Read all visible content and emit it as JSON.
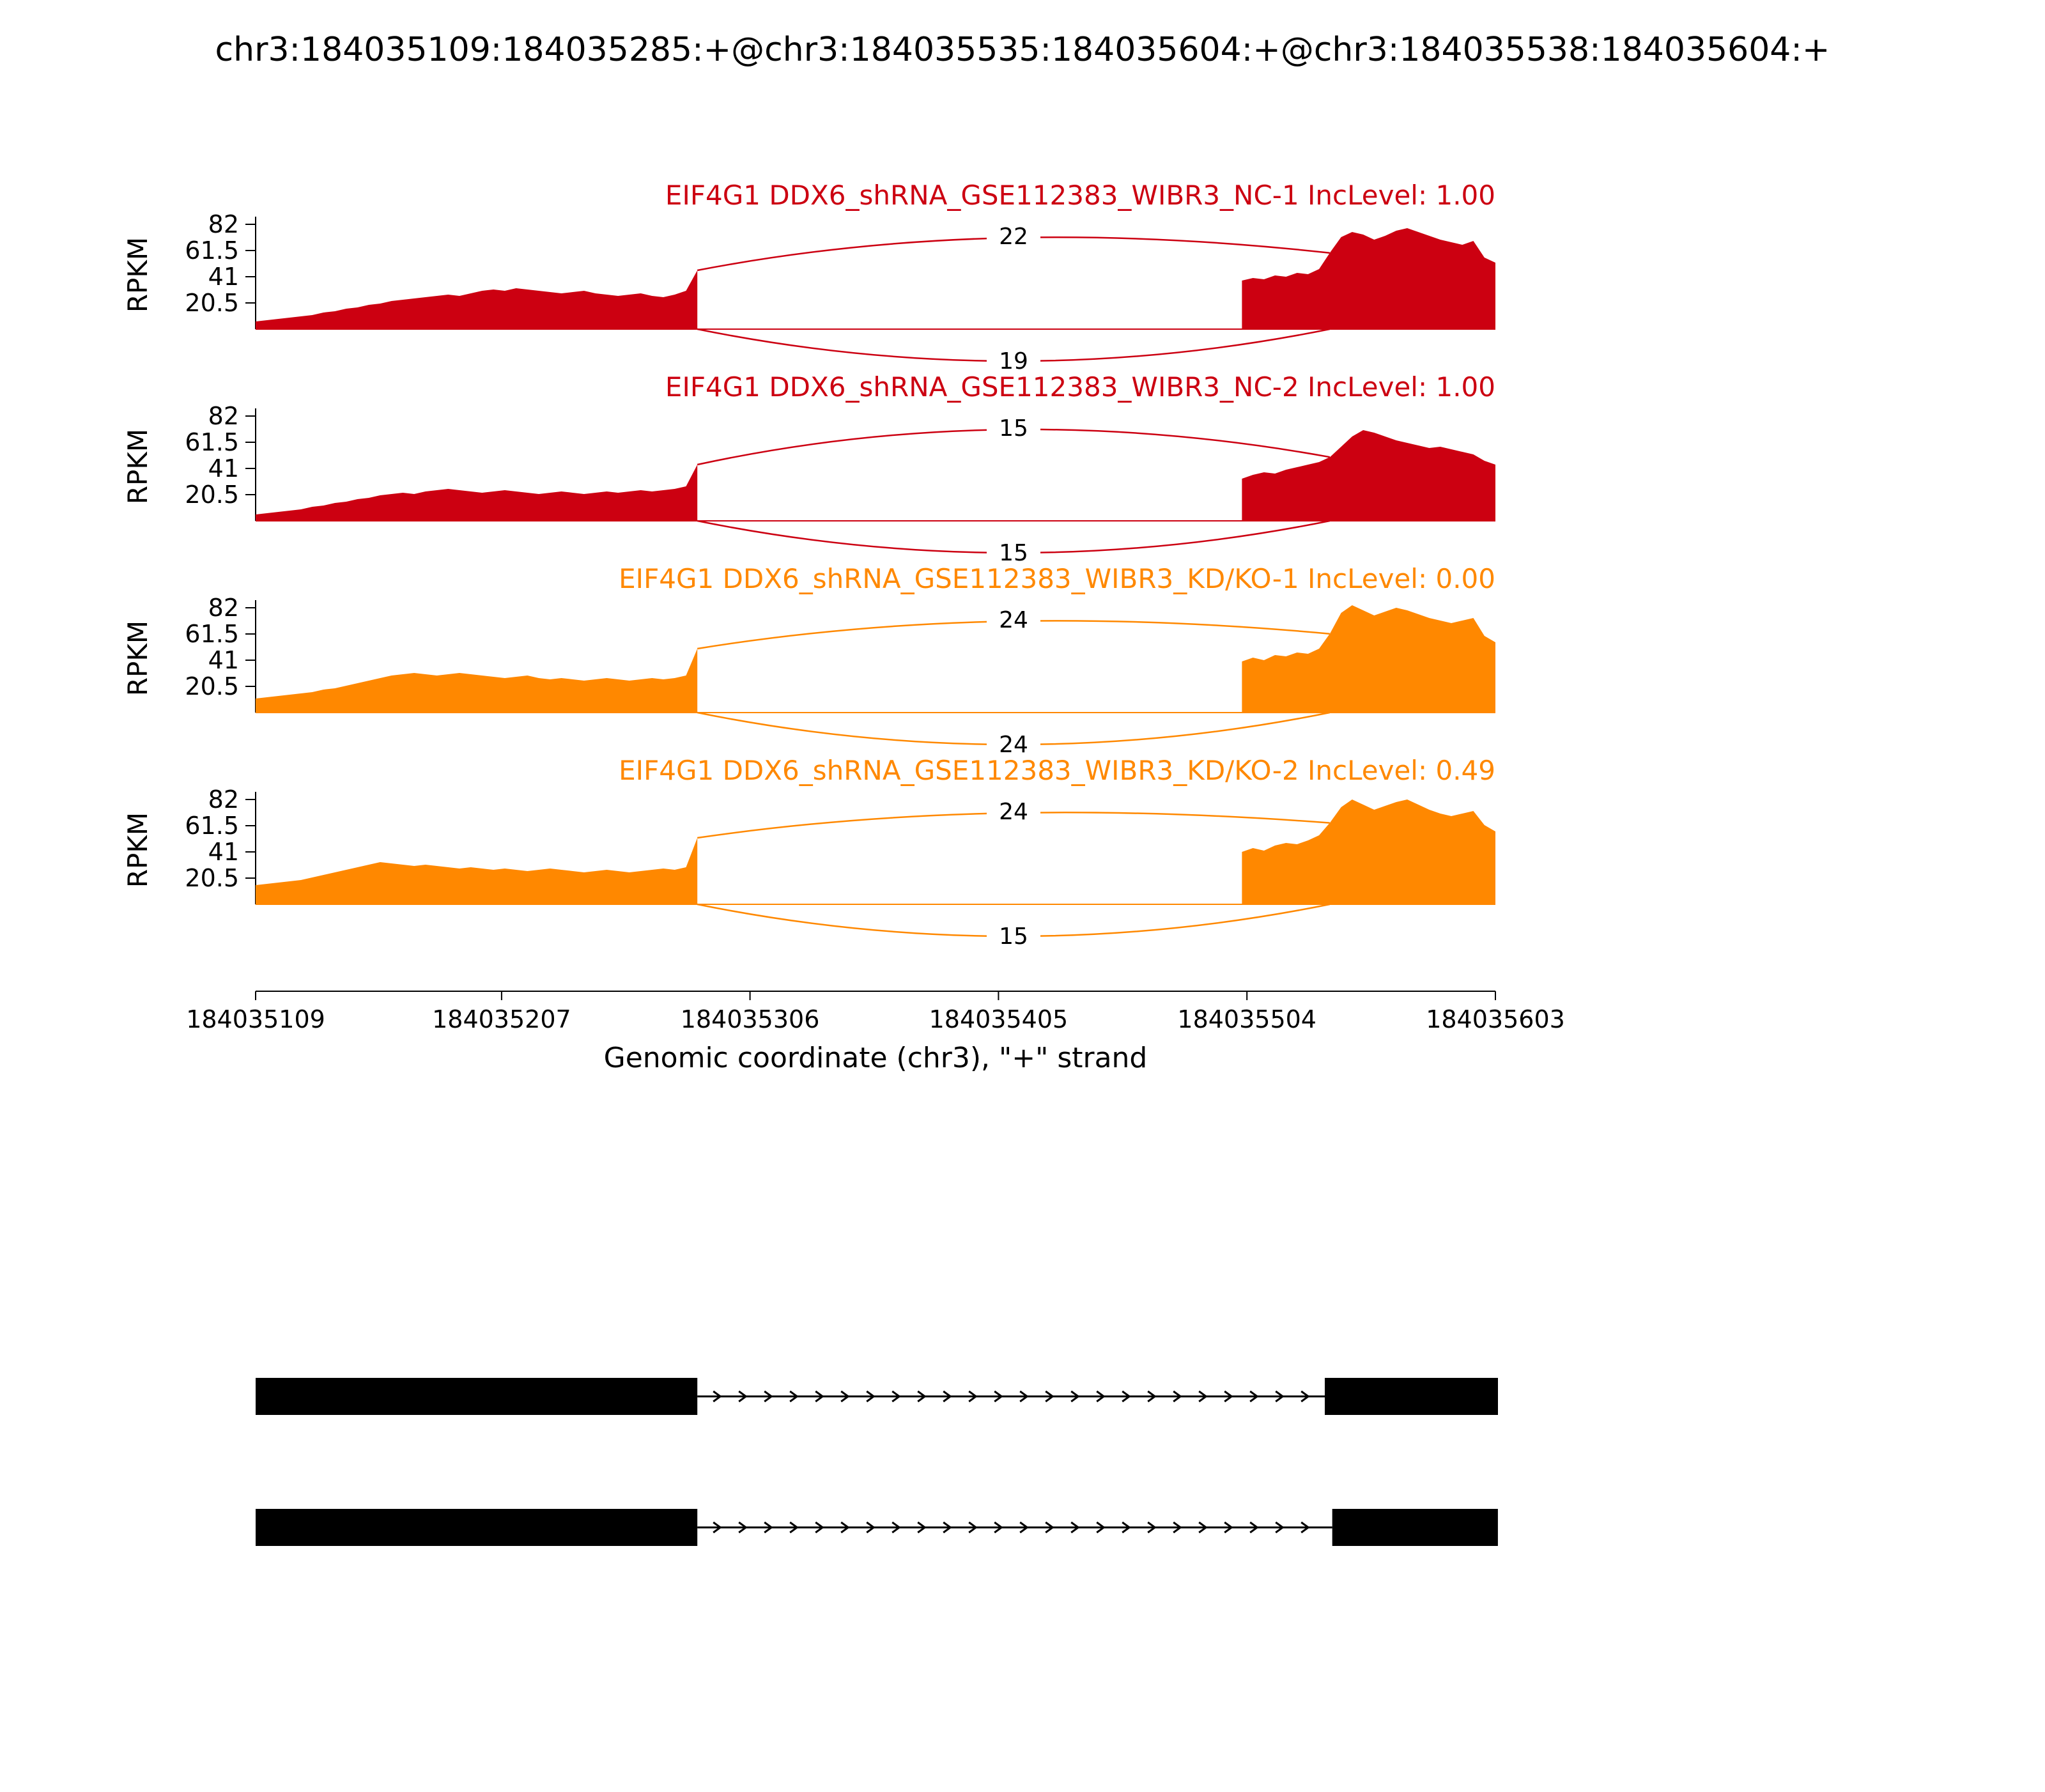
{
  "title": "chr3:184035109:184035285:+@chr3:184035535:184035604:+@chr3:184035538:184035604:+",
  "chart_data": {
    "type": "area",
    "ylabel": "RPKM",
    "yticks": [
      "82",
      "61.5",
      "41",
      "20.5"
    ],
    "xlabel": "Genomic coordinate (chr3), \"+\" strand",
    "xticks": [
      "184035109",
      "184035207",
      "184035306",
      "184035405",
      "184035504",
      "184035603"
    ],
    "xrange": [
      184035109,
      184035603
    ],
    "ymax": 85,
    "tracks": [
      {
        "label": "EIF4G1 DDX6_shRNA_GSE112383_WIBR3_NC-1 IncLevel: 1.00",
        "color": "#CC0011",
        "junction_top": 22,
        "junction_bottom": 19,
        "junction_span": [
          184035285,
          184035537
        ],
        "regions": [
          {
            "start": 184035109,
            "end": 184035285,
            "values": [
              6,
              7,
              8,
              9,
              10,
              11,
              13,
              14,
              16,
              17,
              19,
              20,
              22,
              23,
              24,
              25,
              26,
              27,
              26,
              28,
              30,
              31,
              30,
              32,
              31,
              30,
              29,
              28,
              29,
              30,
              28,
              27,
              26,
              27,
              28,
              26,
              25,
              27,
              30,
              46
            ]
          },
          {
            "start": 184035502,
            "end": 184035603,
            "values": [
              38,
              40,
              39,
              42,
              41,
              44,
              43,
              47,
              60,
              72,
              76,
              74,
              70,
              73,
              77,
              79,
              76,
              73,
              70,
              68,
              66,
              69,
              56,
              52
            ]
          }
        ]
      },
      {
        "label": "EIF4G1 DDX6_shRNA_GSE112383_WIBR3_NC-2 IncLevel: 1.00",
        "color": "#CC0011",
        "junction_top": 15,
        "junction_bottom": 15,
        "junction_span": [
          184035285,
          184035537
        ],
        "regions": [
          {
            "start": 184035109,
            "end": 184035285,
            "values": [
              5,
              6,
              7,
              8,
              9,
              11,
              12,
              14,
              15,
              17,
              18,
              20,
              21,
              22,
              21,
              23,
              24,
              25,
              24,
              23,
              22,
              23,
              24,
              23,
              22,
              21,
              22,
              23,
              22,
              21,
              22,
              23,
              22,
              23,
              24,
              23,
              24,
              25,
              27,
              44
            ]
          },
          {
            "start": 184035502,
            "end": 184035603,
            "values": [
              33,
              36,
              38,
              37,
              40,
              42,
              44,
              46,
              50,
              58,
              66,
              71,
              69,
              66,
              63,
              61,
              59,
              57,
              58,
              56,
              54,
              52,
              47,
              44
            ]
          }
        ]
      },
      {
        "label": "EIF4G1 DDX6_shRNA_GSE112383_WIBR3_KD/KO-1 IncLevel: 0.00",
        "color": "#FF8800",
        "junction_top": 24,
        "junction_bottom": 24,
        "junction_span": [
          184035285,
          184035537
        ],
        "regions": [
          {
            "start": 184035109,
            "end": 184035285,
            "values": [
              11,
              12,
              13,
              14,
              15,
              16,
              18,
              19,
              21,
              23,
              25,
              27,
              29,
              30,
              31,
              30,
              29,
              30,
              31,
              30,
              29,
              28,
              27,
              28,
              29,
              27,
              26,
              27,
              26,
              25,
              26,
              27,
              26,
              25,
              26,
              27,
              26,
              27,
              29,
              50
            ]
          },
          {
            "start": 184035502,
            "end": 184035603,
            "values": [
              40,
              43,
              41,
              45,
              44,
              47,
              46,
              50,
              62,
              78,
              84,
              80,
              76,
              79,
              82,
              80,
              77,
              74,
              72,
              70,
              72,
              74,
              60,
              55
            ]
          }
        ]
      },
      {
        "label": "EIF4G1 DDX6_shRNA_GSE112383_WIBR3_KD/KO-2 IncLevel: 0.49",
        "color": "#FF8800",
        "junction_top": 24,
        "junction_bottom": 15,
        "junction_span": [
          184035285,
          184035537
        ],
        "regions": [
          {
            "start": 184035109,
            "end": 184035285,
            "values": [
              15,
              16,
              17,
              18,
              19,
              21,
              23,
              25,
              27,
              29,
              31,
              33,
              32,
              31,
              30,
              31,
              30,
              29,
              28,
              29,
              28,
              27,
              28,
              27,
              26,
              27,
              28,
              27,
              26,
              25,
              26,
              27,
              26,
              25,
              26,
              27,
              28,
              27,
              29,
              52
            ]
          },
          {
            "start": 184035502,
            "end": 184035603,
            "values": [
              41,
              44,
              42,
              46,
              48,
              47,
              50,
              54,
              64,
              76,
              82,
              78,
              74,
              77,
              80,
              82,
              78,
              74,
              71,
              69,
              71,
              73,
              62,
              57
            ]
          }
        ]
      }
    ],
    "isoforms": [
      {
        "exons": [
          [
            184035109,
            184035285
          ],
          [
            184035535,
            184035604
          ]
        ],
        "strand": "+"
      },
      {
        "exons": [
          [
            184035109,
            184035285
          ],
          [
            184035538,
            184035604
          ]
        ],
        "strand": "+"
      }
    ]
  }
}
